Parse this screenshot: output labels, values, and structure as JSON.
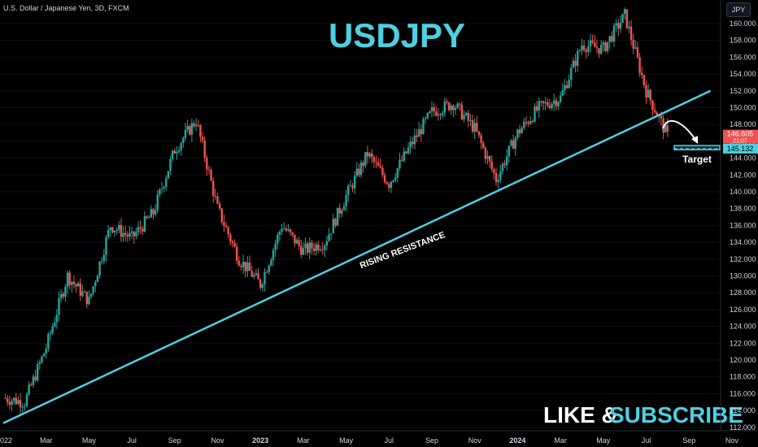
{
  "header": {
    "symbol_desc": "U.S. Dollar / Japanese Yen, 3D, FXCM",
    "currency_button": "JPY"
  },
  "overlay": {
    "title": "USDJPY",
    "line_label": "RISING RESISTANCE",
    "target_label": "Target",
    "cta_like": "LIKE &",
    "cta_subscribe": "SUBSCRIBE"
  },
  "colors": {
    "background": "#000000",
    "up": "#26a69a",
    "down": "#ef5350",
    "accent": "#4dd0e1",
    "text": "#d1d4dc"
  },
  "price_axis": {
    "ticks": [
      "160.000",
      "158.000",
      "156.000",
      "154.000",
      "152.000",
      "150.000",
      "148.000",
      "146.000",
      "144.000",
      "142.000",
      "140.000",
      "138.000",
      "136.000",
      "134.000",
      "132.000",
      "130.000",
      "128.000",
      "126.000",
      "124.000",
      "122.000",
      "120.000",
      "118.000",
      "116.000",
      "114.000",
      "112.000"
    ],
    "last_price": "146.605",
    "last_price_sub": "21:07",
    "target_price": "145.132"
  },
  "time_axis": {
    "labels": [
      "022",
      "Mar",
      "May",
      "Jul",
      "Sep",
      "Nov",
      "2023",
      "Mar",
      "May",
      "Jul",
      "Sep",
      "Nov",
      "2024",
      "Mar",
      "May",
      "Jul",
      "Sep",
      "Nov"
    ]
  },
  "chart_data": {
    "type": "candlestick",
    "title": "USDJPY",
    "ylim": [
      112,
      162
    ],
    "anchors": [
      {
        "date": "2022-01",
        "close": 115.5
      },
      {
        "date": "2022-02",
        "close": 115.0
      },
      {
        "date": "2022-03",
        "close": 121.5
      },
      {
        "date": "2022-04",
        "close": 130.0
      },
      {
        "date": "2022-05",
        "close": 127.0
      },
      {
        "date": "2022-06",
        "close": 136.0
      },
      {
        "date": "2022-07",
        "close": 134.5
      },
      {
        "date": "2022-08",
        "close": 137.5
      },
      {
        "date": "2022-09",
        "close": 145.0
      },
      {
        "date": "2022-10",
        "close": 148.5
      },
      {
        "date": "2022-11",
        "close": 138.0
      },
      {
        "date": "2022-12",
        "close": 132.0
      },
      {
        "date": "2023-01",
        "close": 129.0
      },
      {
        "date": "2023-02",
        "close": 136.0
      },
      {
        "date": "2023-03",
        "close": 133.0
      },
      {
        "date": "2023-04",
        "close": 134.0
      },
      {
        "date": "2023-05",
        "close": 139.5
      },
      {
        "date": "2023-06",
        "close": 144.5
      },
      {
        "date": "2023-07",
        "close": 141.0
      },
      {
        "date": "2023-08",
        "close": 145.5
      },
      {
        "date": "2023-09",
        "close": 149.5
      },
      {
        "date": "2023-10",
        "close": 150.5
      },
      {
        "date": "2023-11",
        "close": 147.5
      },
      {
        "date": "2023-12",
        "close": 141.5
      },
      {
        "date": "2024-01",
        "close": 147.0
      },
      {
        "date": "2024-02",
        "close": 150.0
      },
      {
        "date": "2024-03",
        "close": 151.2
      },
      {
        "date": "2024-04",
        "close": 157.5
      },
      {
        "date": "2024-05",
        "close": 157.0
      },
      {
        "date": "2024-06",
        "close": 161.0
      },
      {
        "date": "2024-07",
        "close": 152.0
      },
      {
        "date": "2024-08",
        "close": 146.6
      }
    ],
    "rising_resistance": [
      {
        "date": "2022-01",
        "price": 112.5
      },
      {
        "date": "2024-10",
        "price": 152.0
      }
    ],
    "target_zone": [
      145.0,
      145.5
    ],
    "target_price": 145.132,
    "last_price": 146.605
  }
}
